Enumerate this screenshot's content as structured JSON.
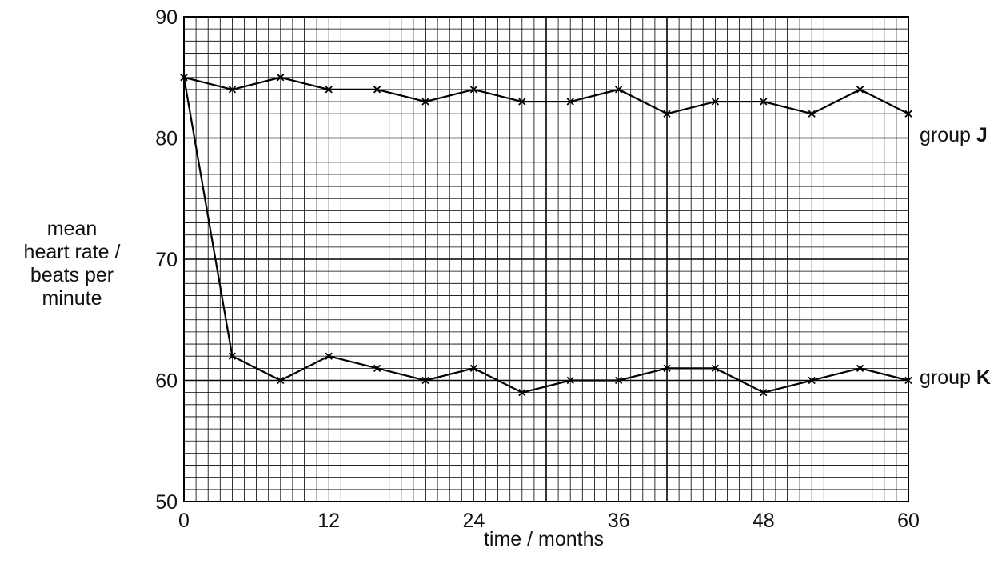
{
  "chart_data": {
    "type": "line",
    "xlabel": "time / months",
    "ylabel_lines": [
      "mean",
      "heart rate /",
      "beats per",
      "minute"
    ],
    "xlim": [
      0,
      60
    ],
    "ylim": [
      50,
      90
    ],
    "x_ticks": [
      0,
      12,
      24,
      36,
      48,
      60
    ],
    "y_ticks": [
      50,
      60,
      70,
      80,
      90
    ],
    "grid": true,
    "x": [
      0,
      4,
      8,
      12,
      16,
      20,
      24,
      28,
      32,
      36,
      40,
      44,
      48,
      52,
      56,
      60
    ],
    "series": [
      {
        "name_prefix": "group",
        "name_letter": "J",
        "values": [
          85,
          84,
          85,
          84,
          84,
          83,
          84,
          83,
          83,
          84,
          82,
          83,
          83,
          82,
          84,
          82
        ]
      },
      {
        "name_prefix": "group",
        "name_letter": "K",
        "values": [
          85,
          62,
          60,
          62,
          61,
          60,
          61,
          59,
          60,
          60,
          61,
          61,
          59,
          60,
          61,
          60
        ]
      }
    ]
  }
}
